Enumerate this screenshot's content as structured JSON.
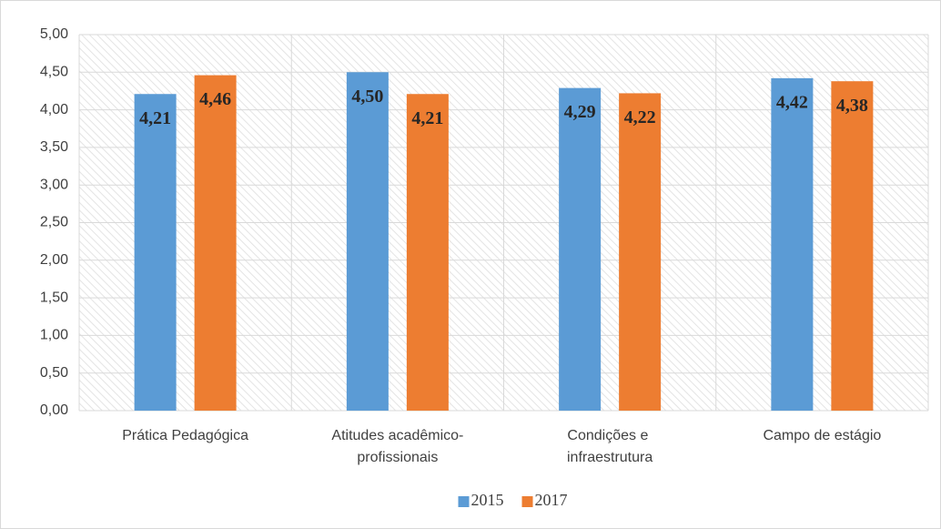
{
  "chart_data": {
    "type": "bar",
    "categories": [
      "Prática Pedagógica",
      "Atitudes acadêmico-profissionais",
      "Condições e infraestrutura",
      "Campo de estágio"
    ],
    "series": [
      {
        "name": "2015",
        "color": "#5b9bd5",
        "values": [
          4.21,
          4.5,
          4.29,
          4.42
        ],
        "value_labels": [
          "4,21",
          "4,50",
          "4,29",
          "4,42"
        ]
      },
      {
        "name": "2017",
        "color": "#ed7d31",
        "values": [
          4.46,
          4.21,
          4.22,
          4.38
        ],
        "value_labels": [
          "4,46",
          "4,21",
          "4,22",
          "4,38"
        ]
      }
    ],
    "ylim": [
      0,
      5
    ],
    "yticks": [
      {
        "value": 0,
        "label": "0,00"
      },
      {
        "value": 0.5,
        "label": "0,50"
      },
      {
        "value": 1,
        "label": "1,00"
      },
      {
        "value": 1.5,
        "label": "1,50"
      },
      {
        "value": 2,
        "label": "2,00"
      },
      {
        "value": 2.5,
        "label": "2,50"
      },
      {
        "value": 3,
        "label": "3,00"
      },
      {
        "value": 3.5,
        "label": "3,50"
      },
      {
        "value": 4,
        "label": "4,00"
      },
      {
        "value": 4.5,
        "label": "4,50"
      },
      {
        "value": 5,
        "label": "5,00"
      }
    ],
    "grid": true,
    "legend": "bottom"
  }
}
